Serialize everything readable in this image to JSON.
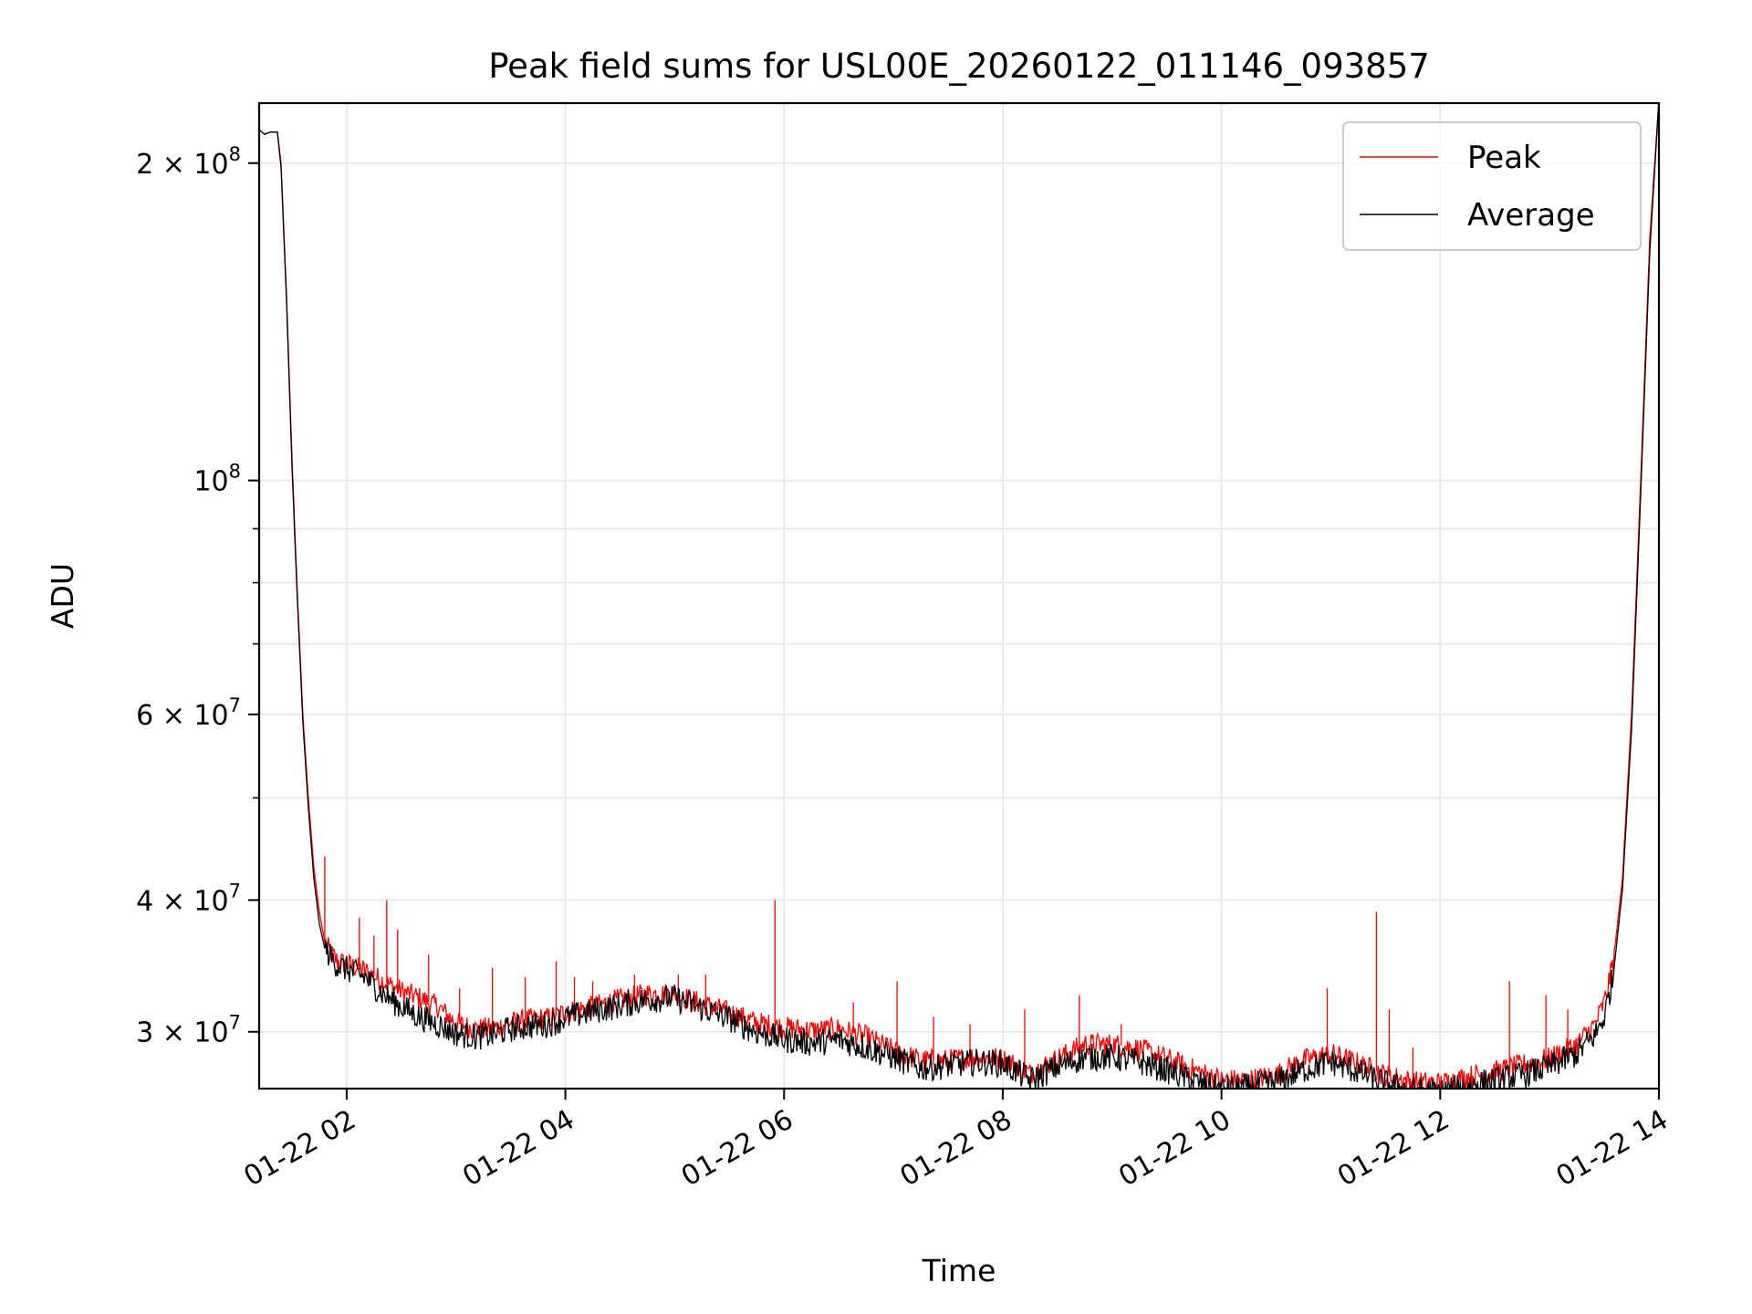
{
  "chart_data": {
    "type": "line",
    "title": "Peak field sums for USL00E_20260122_011146_093857",
    "xlabel": "Time",
    "ylabel": "ADU",
    "y_scale": "log",
    "grid": true,
    "legend_placement": "top-right",
    "xlim": [
      "2026-01-22 01:12",
      "2026-01-22 14:00"
    ],
    "ylim": [
      26500000,
      228000000
    ],
    "x_ticks": [
      "01-22 02",
      "01-22 04",
      "01-22 06",
      "01-22 08",
      "01-22 10",
      "01-22 12",
      "01-22 14"
    ],
    "x_tick_values": [
      "2026-01-22 02:00",
      "2026-01-22 04:00",
      "2026-01-22 06:00",
      "2026-01-22 08:00",
      "2026-01-22 10:00",
      "2026-01-22 12:00",
      "2026-01-22 14:00"
    ],
    "y_ticks": [
      {
        "value": 200000000,
        "mantissa": "2",
        "exponent": "8"
      },
      {
        "value": 100000000,
        "mantissa": "",
        "exponent": "8"
      },
      {
        "value": 60000000,
        "mantissa": "6",
        "exponent": "7"
      },
      {
        "value": 40000000,
        "mantissa": "4",
        "exponent": "7"
      },
      {
        "value": 30000000,
        "mantissa": "3",
        "exponent": "7"
      }
    ],
    "y_minor_ticks": [
      90000000,
      80000000,
      70000000,
      50000000
    ],
    "series": [
      {
        "name": "Peak",
        "color": "#ff0000",
        "x": [
          "01:12",
          "01:15",
          "01:18",
          "01:22",
          "01:24",
          "01:27",
          "01:30",
          "01:33",
          "01:36",
          "01:39",
          "01:42",
          "01:45",
          "01:48",
          "01:52",
          "01:55",
          "02:00",
          "02:10",
          "02:20",
          "02:30",
          "02:40",
          "02:50",
          "03:00",
          "03:10",
          "03:20",
          "03:30",
          "03:40",
          "03:50",
          "04:00",
          "04:15",
          "04:30",
          "04:45",
          "05:00",
          "05:15",
          "05:30",
          "05:45",
          "06:00",
          "06:15",
          "06:30",
          "06:45",
          "07:00",
          "07:15",
          "07:30",
          "07:45",
          "08:00",
          "08:15",
          "08:30",
          "08:45",
          "09:00",
          "09:15",
          "09:30",
          "09:45",
          "10:00",
          "10:15",
          "10:30",
          "10:45",
          "11:00",
          "11:15",
          "11:30",
          "11:45",
          "12:00",
          "12:15",
          "12:30",
          "12:45",
          "13:00",
          "13:15",
          "13:25",
          "13:30",
          "13:35",
          "13:40",
          "13:45",
          "13:50",
          "13:55",
          "14:00"
        ],
        "y": [
          215000000,
          213000000,
          214000000,
          214000000,
          200000000,
          150000000,
          105000000,
          78000000,
          60000000,
          50000000,
          43000000,
          39000000,
          36500000,
          35500000,
          35000000,
          34800000,
          34300000,
          33500000,
          32800000,
          32300000,
          31700000,
          30600000,
          30200000,
          30200000,
          30600000,
          30800000,
          30900000,
          31300000,
          31700000,
          32200000,
          32600000,
          32600000,
          31900000,
          31300000,
          30600000,
          30300000,
          30100000,
          30200000,
          29700000,
          28800000,
          28200000,
          28200000,
          28400000,
          28300000,
          27400000,
          28300000,
          29200000,
          29200000,
          28900000,
          28300000,
          27600000,
          27000000,
          27000000,
          27300000,
          28200000,
          28600000,
          28000000,
          27300000,
          26900000,
          26800000,
          27200000,
          27500000,
          27900000,
          28300000,
          29200000,
          30500000,
          32000000,
          35000000,
          42000000,
          60000000,
          100000000,
          170000000,
          230000000
        ]
      },
      {
        "name": "Average",
        "color": "#000000",
        "x": [
          "01:12",
          "01:15",
          "01:18",
          "01:22",
          "01:24",
          "01:27",
          "01:30",
          "01:33",
          "01:36",
          "01:39",
          "01:42",
          "01:45",
          "01:48",
          "01:52",
          "01:55",
          "02:00",
          "02:10",
          "02:20",
          "02:30",
          "02:40",
          "02:50",
          "03:00",
          "03:10",
          "03:20",
          "03:30",
          "03:40",
          "03:50",
          "04:00",
          "04:15",
          "04:30",
          "04:45",
          "05:00",
          "05:15",
          "05:30",
          "05:45",
          "06:00",
          "06:15",
          "06:30",
          "06:45",
          "07:00",
          "07:15",
          "07:30",
          "07:45",
          "08:00",
          "08:15",
          "08:30",
          "08:45",
          "09:00",
          "09:15",
          "09:30",
          "09:45",
          "10:00",
          "10:15",
          "10:30",
          "10:45",
          "11:00",
          "11:15",
          "11:30",
          "11:45",
          "12:00",
          "12:15",
          "12:30",
          "12:45",
          "13:00",
          "13:15",
          "13:25",
          "13:30",
          "13:35",
          "13:40",
          "13:45",
          "13:50",
          "13:55",
          "14:00"
        ],
        "y": [
          215000000,
          213000000,
          214000000,
          214000000,
          198000000,
          148000000,
          103000000,
          77000000,
          59000000,
          49000000,
          42000000,
          38000000,
          36000000,
          35200000,
          34700000,
          34400000,
          33800000,
          32600000,
          31700000,
          31000000,
          30500000,
          29900000,
          29700000,
          29800000,
          30200000,
          30400000,
          30500000,
          30900000,
          31400000,
          31800000,
          32200000,
          32300000,
          31600000,
          30900000,
          30000000,
          29500000,
          29300000,
          29500000,
          29000000,
          28400000,
          27700000,
          27900000,
          28100000,
          28000000,
          27000000,
          27800000,
          28400000,
          28400000,
          28100000,
          27600000,
          26900000,
          26500000,
          26600000,
          26900000,
          27600000,
          28100000,
          27500000,
          26800000,
          26400000,
          26300000,
          26700000,
          27000000,
          27300000,
          27800000,
          28600000,
          29800000,
          31000000,
          34000000,
          41000000,
          58000000,
          97000000,
          165000000,
          230000000
        ]
      }
    ],
    "spikes": {
      "x": [
        "01:48",
        "02:07",
        "02:15",
        "02:22",
        "02:28",
        "02:45",
        "03:02",
        "03:20",
        "03:38",
        "03:55",
        "04:05",
        "04:15",
        "04:38",
        "05:02",
        "05:17",
        "05:55",
        "06:38",
        "07:02",
        "07:22",
        "07:42",
        "08:12",
        "08:42",
        "09:05",
        "10:58",
        "11:25",
        "11:32",
        "11:45",
        "12:38",
        "12:58",
        "13:10"
      ],
      "y": [
        44000000,
        38500000,
        37000000,
        40000000,
        37500000,
        35500000,
        33000000,
        34500000,
        33800000,
        35000000,
        33800000,
        33500000,
        34000000,
        34000000,
        34000000,
        40000000,
        32000000,
        33500000,
        31000000,
        30500000,
        31500000,
        32500000,
        30500000,
        33000000,
        39000000,
        31500000,
        29000000,
        33500000,
        32500000,
        31500000
      ]
    }
  }
}
